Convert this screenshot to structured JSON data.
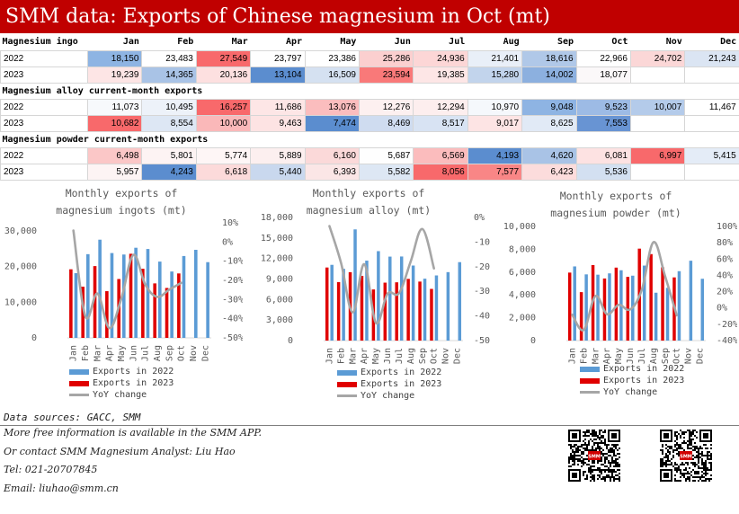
{
  "title": "SMM data: Exports of Chinese magnesium in Oct (mt)",
  "table": {
    "months": [
      "Jan",
      "Feb",
      "Mar",
      "Apr",
      "May",
      "Jun",
      "Jul",
      "Aug",
      "Sep",
      "Oct",
      "Nov",
      "Dec"
    ],
    "sections": [
      {
        "name": "Magnesium ingo",
        "rows": [
          {
            "year": "2022",
            "values": [
              "18,150",
              "23,483",
              "27,549",
              "23,797",
              "23,386",
              "25,286",
              "24,936",
              "21,401",
              "18,616",
              "22,966",
              "24,702",
              "21,243"
            ],
            "colors": [
              "#8eb4e3",
              "#ffffff",
              "#f8696b",
              "#fefefe",
              "#ffffff",
              "#fbcfcf",
              "#fcd6d6",
              "#e9eff8",
              "#b0c8e8",
              "#ffffff",
              "#fbd7d7",
              "#dbe5f3"
            ]
          },
          {
            "year": "2023",
            "values": [
              "19,239",
              "14,365",
              "20,136",
              "13,104",
              "16,509",
              "23,594",
              "19,385",
              "15,280",
              "14,002",
              "18,077",
              "",
              ""
            ],
            "colors": [
              "#fde5e5",
              "#a9c3e6",
              "#fde0e0",
              "#5b8dcf",
              "#d5e1f1",
              "#f97979",
              "#fde6e6",
              "#c2d4ec",
              "#8cb0df",
              "#fbf8f9",
              "#ffffff",
              "#ffffff"
            ]
          }
        ]
      },
      {
        "name": "Magnesium alloy current-month exports",
        "rows": [
          {
            "year": "2022",
            "values": [
              "11,073",
              "10,495",
              "16,257",
              "11,686",
              "13,076",
              "12,276",
              "12,294",
              "10,970",
              "9,048",
              "9,523",
              "10,007",
              "11,467"
            ],
            "colors": [
              "#f7f9fc",
              "#edf2f9",
              "#f8696b",
              "#fde6e6",
              "#fbbdbe",
              "#fdf0f0",
              "#fdeeee",
              "#f5f8fc",
              "#8eb4e3",
              "#9dbbe5",
              "#b4cbea",
              "#ffffff"
            ]
          },
          {
            "year": "2023",
            "values": [
              "10,682",
              "8,554",
              "10,000",
              "9,463",
              "7,474",
              "8,469",
              "8,517",
              "9,017",
              "8,625",
              "7,553",
              "",
              ""
            ],
            "colors": [
              "#f8696b",
              "#dde7f4",
              "#fab8b9",
              "#fde3e3",
              "#5b8dcf",
              "#cfdcf0",
              "#d8e3f3",
              "#fde4e4",
              "#e1eaf6",
              "#6894d3",
              "#ffffff",
              "#ffffff"
            ]
          }
        ]
      },
      {
        "name": "Magnesium powder current-month exports",
        "rows": [
          {
            "year": "2022",
            "values": [
              "6,498",
              "5,801",
              "5,774",
              "5,889",
              "6,160",
              "5,687",
              "6,569",
              "4,193",
              "4,620",
              "6,081",
              "6,997",
              "5,415"
            ],
            "colors": [
              "#fbc7c7",
              "#fdf3f3",
              "#fef6f6",
              "#fcefef",
              "#fbd9d9",
              "#fefefe",
              "#fbbcbd",
              "#5b8dcf",
              "#a9c3e6",
              "#fde2e2",
              "#f8696b",
              "#e4ecf7"
            ]
          },
          {
            "year": "2023",
            "values": [
              "5,957",
              "4,243",
              "6,618",
              "5,440",
              "6,393",
              "5,582",
              "8,056",
              "7,577",
              "6,423",
              "5,536",
              "",
              ""
            ],
            "colors": [
              "#fdf4f4",
              "#5b8dcf",
              "#fcdada",
              "#c9d8ee",
              "#fbe6e6",
              "#dde7f4",
              "#f8696b",
              "#f98686",
              "#fcdcdc",
              "#d3e0f1",
              "#ffffff",
              "#ffffff"
            ]
          }
        ]
      }
    ]
  },
  "charts": [
    {
      "title_line1": "Monthly exports of",
      "title_line2": "magnesium  ingots (mt)",
      "legend": {
        "s2022": "Exports in 2022",
        "s2023": "Exports in 2023",
        "yoy": "YoY change"
      }
    },
    {
      "title_line1": "Monthly exports of",
      "title_line2": "magnesium alloy (mt)",
      "legend": {
        "s2022": "Exports in 2022",
        "s2023": "Exports in 2023",
        "yoy": "YoY change"
      }
    },
    {
      "title_line1": "Monthly exports of",
      "title_line2": "magnesium powder (mt)",
      "legend": {
        "s2022": "Exports in 2022",
        "s2023": "Exports in 2023",
        "yoy": "YoY change"
      }
    }
  ],
  "chart_data": [
    {
      "type": "bar",
      "title": "Monthly exports of magnesium  ingots (mt)",
      "categories": [
        "Jan",
        "Feb",
        "Mar",
        "Apr",
        "May",
        "Jun",
        "Jul",
        "Aug",
        "Sep",
        "Oct",
        "Nov",
        "Dec"
      ],
      "series": [
        {
          "name": "Exports in 2022",
          "values": [
            18150,
            23483,
            27549,
            23797,
            23386,
            25286,
            24936,
            21401,
            18616,
            22966,
            24702,
            21243
          ]
        },
        {
          "name": "Exports in 2023",
          "values": [
            19239,
            14365,
            20136,
            13104,
            16509,
            23594,
            19385,
            15280,
            14002,
            18077,
            null,
            null
          ]
        },
        {
          "name": "YoY change",
          "axis": "right",
          "type": "line",
          "values": [
            6.0,
            -38.8,
            -26.9,
            -44.9,
            -29.4,
            -6.7,
            -22.3,
            -28.6,
            -24.8,
            -21.3,
            null,
            null
          ]
        }
      ],
      "ylim": [
        0,
        30000
      ],
      "yticks": [
        0,
        10000,
        20000,
        30000
      ],
      "y2lim": [
        -50,
        10
      ],
      "y2ticks": [
        -50,
        -40,
        -30,
        -20,
        -10,
        0,
        10
      ],
      "y2format": "percent",
      "legend_position": "bottom"
    },
    {
      "type": "bar",
      "title": "Monthly exports of magnesium alloy (mt)",
      "categories": [
        "Jan",
        "Feb",
        "Mar",
        "Apr",
        "May",
        "Jun",
        "Jul",
        "Aug",
        "Sep",
        "Oct",
        "Nov",
        "Dec"
      ],
      "series": [
        {
          "name": "Exports in 2022",
          "values": [
            11073,
            10495,
            16257,
            11686,
            13076,
            12276,
            12294,
            10970,
            9048,
            9523,
            10007,
            11467
          ]
        },
        {
          "name": "Exports in 2023",
          "values": [
            10682,
            8554,
            10000,
            9463,
            7474,
            8469,
            8517,
            9017,
            8625,
            7553,
            null,
            null
          ]
        },
        {
          "name": "YoY change",
          "axis": "right",
          "type": "line",
          "values": [
            -3.5,
            -18.5,
            -38.5,
            -19.0,
            -42.8,
            -31.0,
            -30.7,
            -17.8,
            -4.7,
            -20.7,
            null,
            null
          ]
        }
      ],
      "ylim": [
        0,
        18000
      ],
      "yticks": [
        0,
        3000,
        6000,
        9000,
        12000,
        15000,
        18000
      ],
      "y2lim": [
        -50,
        0
      ],
      "y2ticks": [
        -50,
        -40,
        -30,
        -20,
        -10,
        0
      ],
      "y2format": "percent",
      "legend_position": "bottom"
    },
    {
      "type": "bar",
      "title": "Monthly exports of magnesium powder (mt)",
      "categories": [
        "Jan",
        "Feb",
        "Mar",
        "Apr",
        "May",
        "Jun",
        "Jul",
        "Aug",
        "Sep",
        "Oct",
        "Nov",
        "Dec"
      ],
      "series": [
        {
          "name": "Exports in 2022",
          "values": [
            6498,
            5801,
            5774,
            5889,
            6160,
            5687,
            6569,
            4193,
            4620,
            6081,
            6997,
            5415
          ]
        },
        {
          "name": "Exports in 2023",
          "values": [
            5957,
            4243,
            6618,
            5440,
            6393,
            5582,
            8056,
            7577,
            6423,
            5536,
            null,
            null
          ]
        },
        {
          "name": "YoY change",
          "axis": "right",
          "type": "line",
          "values": [
            -8.3,
            -26.9,
            14.6,
            -7.6,
            3.8,
            -1.8,
            22.6,
            80.7,
            39.0,
            -9.0,
            null,
            null
          ]
        }
      ],
      "ylim": [
        0,
        10000
      ],
      "yticks": [
        0,
        2000,
        4000,
        6000,
        8000,
        10000
      ],
      "y2lim": [
        -40,
        100
      ],
      "y2ticks": [
        -40,
        -20,
        0,
        20,
        40,
        60,
        80,
        100
      ],
      "y2format": "percent",
      "legend_position": "bottom"
    }
  ],
  "footer": {
    "sources": "Data sources: GACC, SMM",
    "line1": "More free information is available in the SMM APP.",
    "line2": "Or contact SMM Magnesium Analyst: Liu Hao",
    "line3": "Tel: 021-20707845",
    "line4": "Email: liuhao@smm.cn"
  },
  "qr": [
    {
      "label": "SMM"
    },
    {
      "label": "SMM"
    }
  ],
  "colors": {
    "title_bg": "#c00000",
    "bar2022": "#5b9bd5",
    "bar2023": "#e00000",
    "yoy": "#a6a6a6"
  }
}
